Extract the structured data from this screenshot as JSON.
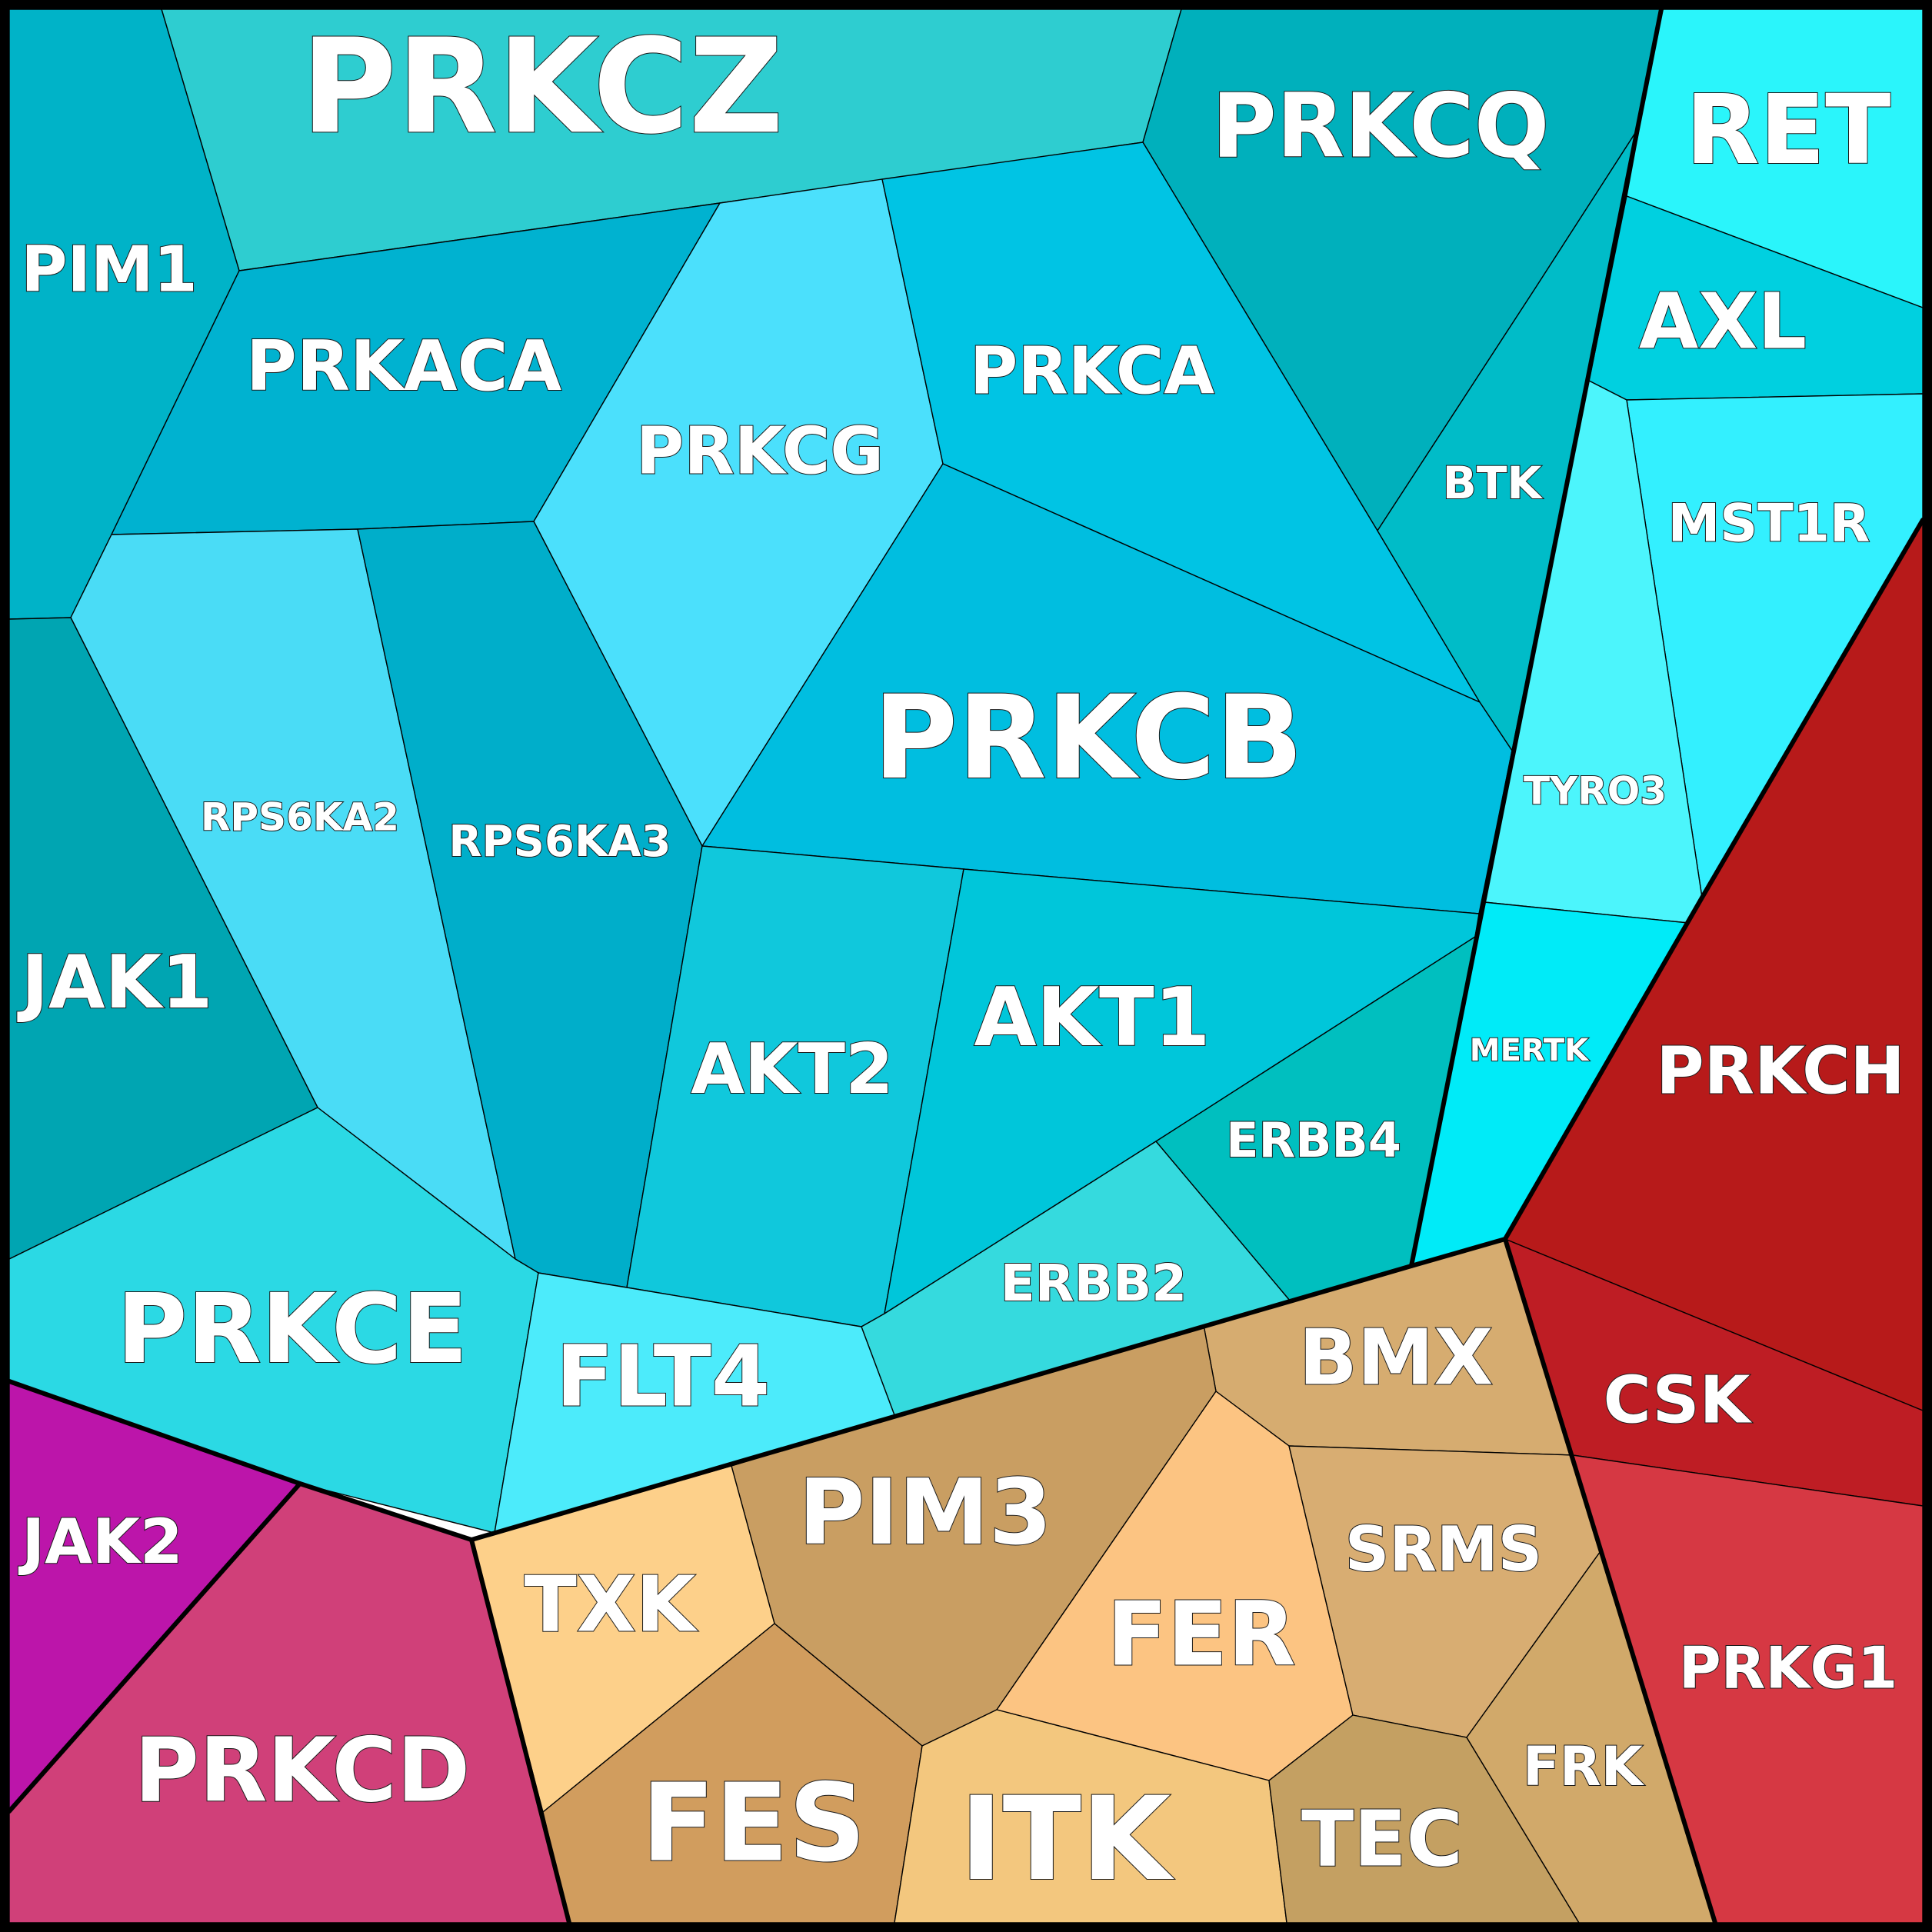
{
  "chart_data": {
    "type": "voronoi-treemap",
    "title": "",
    "colors": {
      "teal_group": "#00B5C8",
      "red_group": "#B71C1C",
      "magenta_group": "#D0407A",
      "tan_group": "#D4A86A"
    },
    "cells": [
      {
        "name": "PRKCZ",
        "color": "#2ECDD0"
      },
      {
        "name": "PRKCQ",
        "color": "#00B0BC"
      },
      {
        "name": "RET",
        "color": "#2AF5FB"
      },
      {
        "name": "PIM1",
        "color": "#00B3C8"
      },
      {
        "name": "PRKACA",
        "color": "#00B2D0"
      },
      {
        "name": "PRKCG",
        "color": "#4BE0FC"
      },
      {
        "name": "PRKCA",
        "color": "#00C4E4"
      },
      {
        "name": "AXL",
        "color": "#00D0E0"
      },
      {
        "name": "BTK",
        "color": "#00BCC8"
      },
      {
        "name": "MST1R",
        "color": "#33F0FF"
      },
      {
        "name": "RPS6KA2",
        "color": "#4ADCF6"
      },
      {
        "name": "RPS6KA3",
        "color": "#00AECA"
      },
      {
        "name": "PRKCB",
        "color": "#00BEE0"
      },
      {
        "name": "TYRO3",
        "color": "#4CF5FC"
      },
      {
        "name": "JAK1",
        "color": "#00A5B2"
      },
      {
        "name": "AKT2",
        "color": "#10C8DC"
      },
      {
        "name": "AKT1",
        "color": "#00C6DA"
      },
      {
        "name": "MERTK",
        "color": "#00EBF8"
      },
      {
        "name": "ERBB4",
        "color": "#00BFBF"
      },
      {
        "name": "ERBB2",
        "color": "#35DADE"
      },
      {
        "name": "PRKCE",
        "color": "#2BD9E4"
      },
      {
        "name": "FLT4",
        "color": "#4CEBFB"
      },
      {
        "name": "PRKCH",
        "color": "#B71A1A"
      },
      {
        "name": "CSK",
        "color": "#BE1D24"
      },
      {
        "name": "PRKG1",
        "color": "#D63843"
      },
      {
        "name": "JAK2",
        "color": "#BC15AA"
      },
      {
        "name": "PRKCD",
        "color": "#D04079"
      },
      {
        "name": "BMX",
        "color": "#D6AC70"
      },
      {
        "name": "PIM3",
        "color": "#C99E62"
      },
      {
        "name": "TXK",
        "color": "#FDD08A"
      },
      {
        "name": "FER",
        "color": "#FCC482"
      },
      {
        "name": "SRMS",
        "color": "#D8AD72"
      },
      {
        "name": "FES",
        "color": "#D19D5E"
      },
      {
        "name": "ITK",
        "color": "#F3C77E"
      },
      {
        "name": "TEC",
        "color": "#C4A062"
      },
      {
        "name": "FRK",
        "color": "#D1A96A"
      }
    ]
  }
}
